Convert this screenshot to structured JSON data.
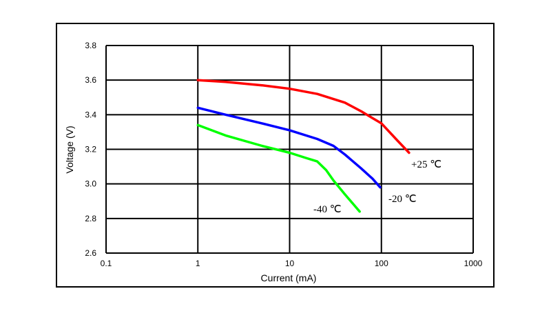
{
  "chart_data": {
    "type": "line",
    "title": "",
    "xlabel": "Current (mA)",
    "ylabel": "Voltage (V)",
    "xscale": "log",
    "xlim": [
      0.1,
      1000
    ],
    "ylim": [
      2.6,
      3.8
    ],
    "x_ticks": [
      "0.1",
      "1",
      "10",
      "100",
      "1000"
    ],
    "y_ticks": [
      "2.6",
      "2.8",
      "3.0",
      "3.2",
      "3.4",
      "3.6",
      "3.8"
    ],
    "grid": true,
    "series": [
      {
        "name": "+25 ℃",
        "color": "#ff0000",
        "points": [
          [
            1,
            3.6
          ],
          [
            2,
            3.59
          ],
          [
            5,
            3.57
          ],
          [
            10,
            3.55
          ],
          [
            20,
            3.52
          ],
          [
            40,
            3.47
          ],
          [
            60,
            3.42
          ],
          [
            80,
            3.38
          ],
          [
            100,
            3.35
          ],
          [
            150,
            3.25
          ],
          [
            200,
            3.18
          ]
        ]
      },
      {
        "name": "-20 ℃",
        "color": "#0000ff",
        "points": [
          [
            1,
            3.44
          ],
          [
            2,
            3.4
          ],
          [
            5,
            3.35
          ],
          [
            10,
            3.31
          ],
          [
            20,
            3.26
          ],
          [
            30,
            3.22
          ],
          [
            40,
            3.17
          ],
          [
            60,
            3.09
          ],
          [
            80,
            3.03
          ],
          [
            97,
            2.98
          ]
        ]
      },
      {
        "name": "-40 ℃",
        "color": "#00ff00",
        "points": [
          [
            1,
            3.34
          ],
          [
            2,
            3.28
          ],
          [
            5,
            3.22
          ],
          [
            10,
            3.18
          ],
          [
            15,
            3.15
          ],
          [
            20,
            3.13
          ],
          [
            25,
            3.08
          ],
          [
            30,
            3.02
          ],
          [
            40,
            2.94
          ],
          [
            50,
            2.88
          ],
          [
            58,
            2.84
          ]
        ]
      }
    ]
  }
}
